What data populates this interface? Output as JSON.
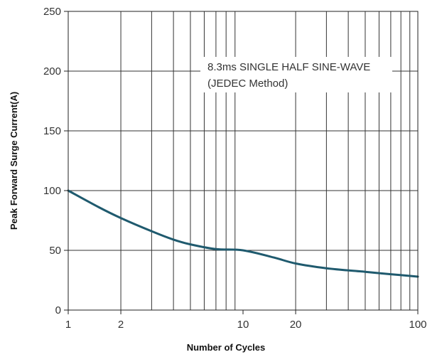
{
  "chart_data": {
    "type": "line",
    "title": "",
    "xlabel": "Number of Cycles",
    "ylabel": "Peak Forward Surge Current(A)",
    "x_scale": "log",
    "xlim": [
      1,
      100
    ],
    "ylim": [
      0,
      250
    ],
    "x_ticks": [
      1,
      2,
      10,
      20,
      100
    ],
    "x_tick_labels": [
      "1",
      "2",
      "10",
      "20",
      "100"
    ],
    "y_ticks": [
      0,
      50,
      100,
      150,
      200,
      250
    ],
    "y_tick_labels": [
      "0",
      "50",
      "100",
      "150",
      "200",
      "250"
    ],
    "grid": true,
    "annotation": [
      "8.3ms SINGLE HALF SINE-WAVE",
      "(JEDEC Method)"
    ],
    "series": [
      {
        "color": "#1f5a6e",
        "x": [
          1,
          1.5,
          2,
          3,
          4,
          5,
          7,
          10,
          15,
          20,
          30,
          50,
          70,
          100
        ],
        "y": [
          100,
          86,
          77,
          66,
          59,
          55,
          51,
          50,
          44,
          39,
          35,
          32,
          30,
          28
        ]
      }
    ]
  }
}
